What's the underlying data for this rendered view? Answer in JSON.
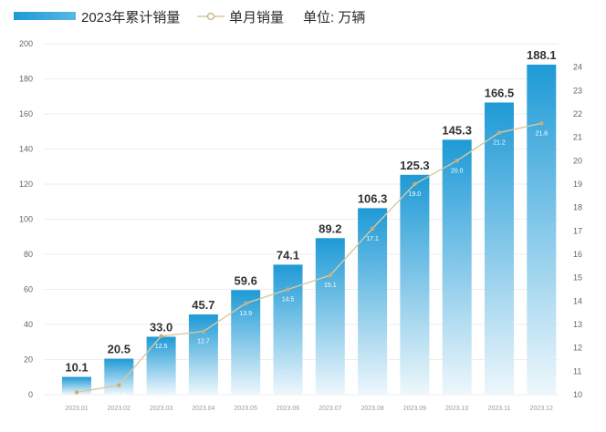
{
  "legend": {
    "cumulative": "2023年累计销量",
    "monthly": "单月销量",
    "unit": "单位: 万辆"
  },
  "colors": {
    "bar_top": "#1e9ad6",
    "bar_bottom": "#eef7fc",
    "line": "#d8c9a0",
    "marker": "#c8b078"
  },
  "chart_data": {
    "type": "bar+line",
    "categories": [
      "2023.01",
      "2023.02",
      "2023.03",
      "2023.04",
      "2023.05",
      "2023.06",
      "2023.07",
      "2023.08",
      "2023.09",
      "2023.10",
      "2023.11",
      "2023.12"
    ],
    "series": [
      {
        "name": "2023年累计销量",
        "axis": "left",
        "type": "bar",
        "values": [
          10.1,
          20.5,
          33.0,
          45.7,
          59.6,
          74.1,
          89.2,
          106.3,
          125.3,
          145.3,
          166.5,
          188.1
        ],
        "labels": [
          "10.1",
          "20.5",
          "33.0",
          "45.7",
          "59.6",
          "74.1",
          "89.2",
          "106.3",
          "125.3",
          "145.3",
          "166.5",
          "188.1"
        ]
      },
      {
        "name": "单月销量",
        "axis": "right",
        "type": "line",
        "values": [
          10.1,
          10.4,
          12.5,
          12.7,
          13.9,
          14.5,
          15.1,
          17.1,
          19.0,
          20.0,
          21.2,
          21.6
        ],
        "labels": [
          "",
          "10.4",
          "12.5",
          "12.7",
          "13.9",
          "14.5",
          "15.1",
          "17.1",
          "19.0",
          "20.0",
          "21.2",
          "21.6"
        ]
      }
    ],
    "y_left": {
      "ylim": [
        0,
        200
      ],
      "ticks": [
        "0",
        "20",
        "40",
        "60",
        "80",
        "100",
        "120",
        "140",
        "160",
        "180",
        "200"
      ]
    },
    "y_right": {
      "ylim": [
        10,
        25
      ],
      "ticks": [
        "10",
        "11",
        "12",
        "13",
        "14",
        "15",
        "16",
        "17",
        "18",
        "19",
        "20",
        "21",
        "22",
        "23",
        "24"
      ]
    },
    "grid": true,
    "legend_position": "top-left"
  }
}
